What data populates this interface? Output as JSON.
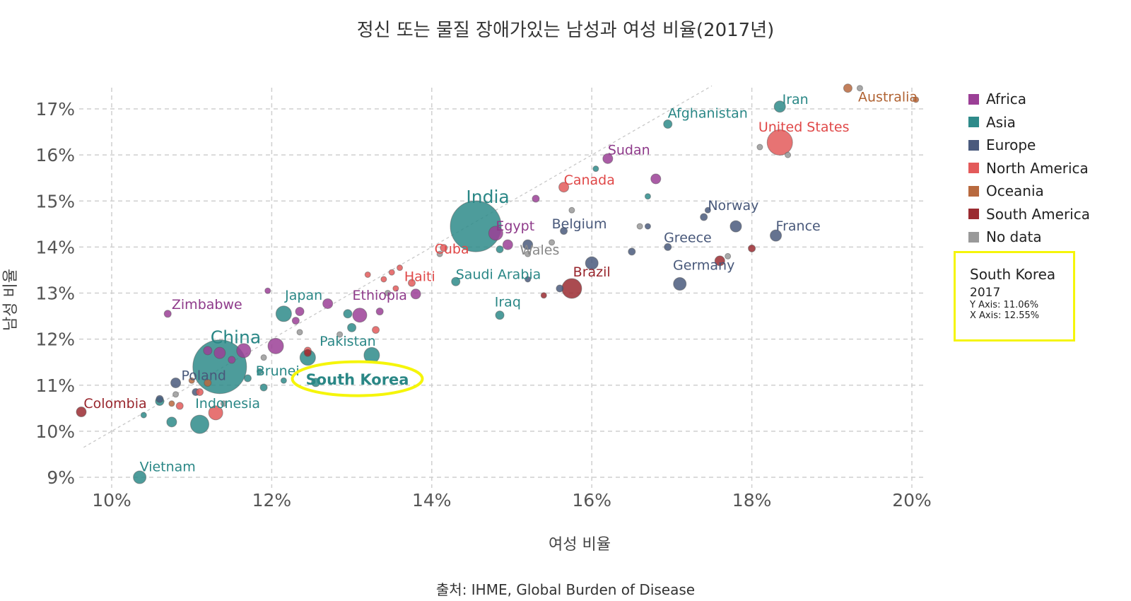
{
  "title": "정신 또는 물질 장애가있는 남성과 여성 비율(2017년)",
  "source": "출처: IHME, Global Burden of Disease",
  "tooltip": {
    "country": "South Korea",
    "year": "2017",
    "y_axis": "Y Axis: 11.06%",
    "x_axis": "X Axis: 12.55%",
    "border_color": "#f5f50a"
  },
  "highlight": {
    "country": "South Korea",
    "ring_color": "#f5f50a"
  },
  "legend": [
    {
      "name": "Africa",
      "color": "#9b3f96"
    },
    {
      "name": "Asia",
      "color": "#2e8b8a"
    },
    {
      "name": "Europe",
      "color": "#4a5a7d"
    },
    {
      "name": "North America",
      "color": "#e35a5a"
    },
    {
      "name": "Oceania",
      "color": "#b8693e"
    },
    {
      "name": "South America",
      "color": "#9b2b31"
    },
    {
      "name": "No data",
      "color": "#999999"
    }
  ],
  "chart_data": {
    "type": "scatter",
    "title": "정신 또는 물질 장애가있는 남성과 여성 비율(2017년)",
    "xlabel": "여성 비율",
    "ylabel": "남성 비율",
    "xlim": [
      10,
      20
    ],
    "ylim": [
      9,
      17
    ],
    "x_ticks": [
      "10%",
      "12%",
      "14%",
      "16%",
      "18%",
      "20%"
    ],
    "y_ticks": [
      "9%",
      "10%",
      "11%",
      "12%",
      "13%",
      "14%",
      "15%",
      "16%",
      "17%"
    ],
    "grid": true,
    "legend_position": "top-right",
    "reference_line": [
      [
        9.65,
        9.65
      ],
      [
        17.5,
        17.5
      ]
    ],
    "series": [
      {
        "name": "Africa",
        "points": [
          {
            "label": "Sudan",
            "x": 16.2,
            "y": 15.92,
            "size": 7
          },
          {
            "label": "Egypt",
            "x": 14.8,
            "y": 14.3,
            "size": 10
          },
          {
            "label": "Ethiopia",
            "x": 13.1,
            "y": 12.52,
            "size": 10
          },
          {
            "label": "Zimbabwe",
            "x": 10.7,
            "y": 12.55,
            "size": 5
          },
          {
            "label": "",
            "x": 16.8,
            "y": 15.48,
            "size": 7
          },
          {
            "label": "",
            "x": 15.3,
            "y": 15.05,
            "size": 5
          },
          {
            "label": "",
            "x": 14.95,
            "y": 14.05,
            "size": 7
          },
          {
            "label": "",
            "x": 12.7,
            "y": 12.77,
            "size": 7
          },
          {
            "label": "",
            "x": 13.8,
            "y": 12.98,
            "size": 7
          },
          {
            "label": "",
            "x": 12.05,
            "y": 11.85,
            "size": 11
          },
          {
            "label": "",
            "x": 11.65,
            "y": 11.75,
            "size": 10
          },
          {
            "label": "",
            "x": 11.35,
            "y": 11.7,
            "size": 8
          },
          {
            "label": "",
            "x": 11.2,
            "y": 11.75,
            "size": 6
          },
          {
            "label": "",
            "x": 12.35,
            "y": 12.6,
            "size": 6
          },
          {
            "label": "",
            "x": 13.35,
            "y": 12.6,
            "size": 5
          },
          {
            "label": "",
            "x": 11.95,
            "y": 13.05,
            "size": 4
          },
          {
            "label": "",
            "x": 12.3,
            "y": 12.4,
            "size": 5
          },
          {
            "label": "",
            "x": 11.5,
            "y": 11.55,
            "size": 5
          }
        ]
      },
      {
        "name": "Asia",
        "points": [
          {
            "label": "India",
            "x": 14.55,
            "y": 14.45,
            "size": 36
          },
          {
            "label": "China",
            "x": 11.35,
            "y": 11.4,
            "size": 38
          },
          {
            "label": "Iran",
            "x": 18.35,
            "y": 17.05,
            "size": 8
          },
          {
            "label": "Afghanistan",
            "x": 16.95,
            "y": 16.67,
            "size": 6
          },
          {
            "label": "Saudi Arabia",
            "x": 14.3,
            "y": 13.25,
            "size": 6
          },
          {
            "label": "Iraq",
            "x": 14.85,
            "y": 12.52,
            "size": 6
          },
          {
            "label": "Japan",
            "x": 12.15,
            "y": 12.55,
            "size": 11
          },
          {
            "label": "Pakistan",
            "x": 13.25,
            "y": 11.65,
            "size": 11
          },
          {
            "label": "South Korea",
            "x": 12.55,
            "y": 11.06,
            "size": 6
          },
          {
            "label": "Brunei",
            "x": 11.85,
            "y": 11.3,
            "size": 4
          },
          {
            "label": "Indonesia",
            "x": 11.1,
            "y": 10.15,
            "size": 13
          },
          {
            "label": "Vietnam",
            "x": 10.35,
            "y": 9.0,
            "size": 9
          },
          {
            "label": "",
            "x": 12.45,
            "y": 11.6,
            "size": 11
          },
          {
            "label": "",
            "x": 12.95,
            "y": 12.55,
            "size": 6
          },
          {
            "label": "",
            "x": 10.75,
            "y": 10.2,
            "size": 7
          },
          {
            "label": "",
            "x": 10.6,
            "y": 10.65,
            "size": 6
          },
          {
            "label": "",
            "x": 10.4,
            "y": 10.35,
            "size": 4
          },
          {
            "label": "",
            "x": 11.9,
            "y": 10.95,
            "size": 5
          },
          {
            "label": "",
            "x": 11.7,
            "y": 11.15,
            "size": 5
          },
          {
            "label": "",
            "x": 12.15,
            "y": 11.1,
            "size": 4
          },
          {
            "label": "",
            "x": 14.85,
            "y": 13.95,
            "size": 5
          },
          {
            "label": "",
            "x": 16.05,
            "y": 15.7,
            "size": 4
          },
          {
            "label": "",
            "x": 16.7,
            "y": 15.1,
            "size": 4
          },
          {
            "label": "",
            "x": 13.0,
            "y": 12.25,
            "size": 6
          }
        ]
      },
      {
        "name": "Europe",
        "points": [
          {
            "label": "France",
            "x": 18.3,
            "y": 14.25,
            "size": 8
          },
          {
            "label": "Germany",
            "x": 17.1,
            "y": 13.2,
            "size": 9
          },
          {
            "label": "Norway",
            "x": 17.4,
            "y": 14.65,
            "size": 5
          },
          {
            "label": "Greece",
            "x": 16.95,
            "y": 14.0,
            "size": 5
          },
          {
            "label": "Belgium",
            "x": 15.65,
            "y": 14.35,
            "size": 5
          },
          {
            "label": "Poland",
            "x": 10.8,
            "y": 11.05,
            "size": 7
          },
          {
            "label": "",
            "x": 17.8,
            "y": 14.45,
            "size": 8
          },
          {
            "label": "",
            "x": 16.0,
            "y": 13.65,
            "size": 9
          },
          {
            "label": "",
            "x": 15.2,
            "y": 14.05,
            "size": 7
          },
          {
            "label": "",
            "x": 16.5,
            "y": 13.9,
            "size": 5
          },
          {
            "label": "",
            "x": 16.7,
            "y": 14.45,
            "size": 4
          },
          {
            "label": "",
            "x": 15.6,
            "y": 13.1,
            "size": 5
          },
          {
            "label": "",
            "x": 15.2,
            "y": 13.3,
            "size": 4
          },
          {
            "label": "",
            "x": 17.45,
            "y": 14.8,
            "size": 4
          },
          {
            "label": "",
            "x": 10.6,
            "y": 10.7,
            "size": 5
          },
          {
            "label": "",
            "x": 11.05,
            "y": 10.85,
            "size": 5
          }
        ]
      },
      {
        "name": "North America",
        "points": [
          {
            "label": "United States",
            "x": 18.35,
            "y": 16.27,
            "size": 18
          },
          {
            "label": "Canada",
            "x": 15.65,
            "y": 15.3,
            "size": 7
          },
          {
            "label": "Cuba",
            "x": 14.15,
            "y": 13.98,
            "size": 5
          },
          {
            "label": "Haiti",
            "x": 13.75,
            "y": 13.22,
            "size": 5
          },
          {
            "label": "",
            "x": 13.5,
            "y": 13.45,
            "size": 4
          },
          {
            "label": "",
            "x": 13.6,
            "y": 13.55,
            "size": 4
          },
          {
            "label": "",
            "x": 13.4,
            "y": 13.3,
            "size": 4
          },
          {
            "label": "",
            "x": 13.55,
            "y": 13.1,
            "size": 4
          },
          {
            "label": "",
            "x": 13.3,
            "y": 12.2,
            "size": 5
          },
          {
            "label": "",
            "x": 12.45,
            "y": 11.75,
            "size": 5
          },
          {
            "label": "",
            "x": 11.3,
            "y": 10.4,
            "size": 10
          },
          {
            "label": "",
            "x": 10.85,
            "y": 10.55,
            "size": 5
          },
          {
            "label": "",
            "x": 11.1,
            "y": 10.85,
            "size": 5
          },
          {
            "label": "",
            "x": 13.2,
            "y": 13.4,
            "size": 4
          }
        ]
      },
      {
        "name": "Oceania",
        "points": [
          {
            "label": "Australia",
            "x": 19.2,
            "y": 17.45,
            "size": 6
          },
          {
            "label": "",
            "x": 20.05,
            "y": 17.2,
            "size": 4
          },
          {
            "label": "",
            "x": 11.2,
            "y": 11.05,
            "size": 5
          },
          {
            "label": "",
            "x": 11.0,
            "y": 11.1,
            "size": 4
          },
          {
            "label": "",
            "x": 10.75,
            "y": 10.6,
            "size": 4
          }
        ]
      },
      {
        "name": "South America",
        "points": [
          {
            "label": "Brazil",
            "x": 15.75,
            "y": 13.1,
            "size": 14
          },
          {
            "label": "Colombia",
            "x": 9.62,
            "y": 10.42,
            "size": 7
          },
          {
            "label": "",
            "x": 17.6,
            "y": 13.7,
            "size": 7
          },
          {
            "label": "",
            "x": 18.0,
            "y": 13.97,
            "size": 5
          },
          {
            "label": "",
            "x": 15.4,
            "y": 12.95,
            "size": 4
          },
          {
            "label": "",
            "x": 12.45,
            "y": 11.7,
            "size": 5
          }
        ]
      },
      {
        "name": "No data",
        "points": [
          {
            "label": "Wales",
            "x": 15.5,
            "y": 14.1,
            "size": 4
          },
          {
            "label": "",
            "x": 19.35,
            "y": 17.45,
            "size": 4
          },
          {
            "label": "",
            "x": 18.1,
            "y": 16.17,
            "size": 4
          },
          {
            "label": "",
            "x": 18.45,
            "y": 16.0,
            "size": 4
          },
          {
            "label": "",
            "x": 15.75,
            "y": 14.8,
            "size": 4
          },
          {
            "label": "",
            "x": 16.6,
            "y": 14.45,
            "size": 4
          },
          {
            "label": "",
            "x": 17.7,
            "y": 13.8,
            "size": 4
          },
          {
            "label": "",
            "x": 15.2,
            "y": 13.85,
            "size": 4
          },
          {
            "label": "",
            "x": 13.45,
            "y": 13.0,
            "size": 4
          },
          {
            "label": "",
            "x": 12.35,
            "y": 12.15,
            "size": 4
          },
          {
            "label": "",
            "x": 12.85,
            "y": 12.1,
            "size": 4
          },
          {
            "label": "",
            "x": 11.9,
            "y": 11.6,
            "size": 4
          },
          {
            "label": "",
            "x": 10.8,
            "y": 10.8,
            "size": 4
          },
          {
            "label": "",
            "x": 11.4,
            "y": 10.6,
            "size": 4
          },
          {
            "label": "",
            "x": 14.1,
            "y": 13.85,
            "size": 4
          }
        ]
      }
    ]
  }
}
